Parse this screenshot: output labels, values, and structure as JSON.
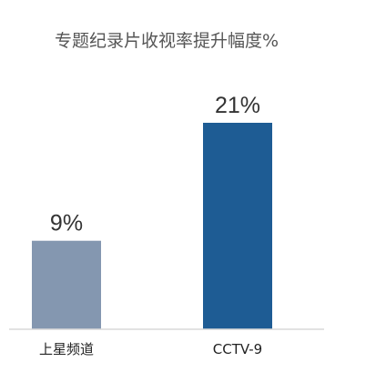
{
  "chart_data": {
    "type": "bar",
    "title": "专题纪录片收视率提升幅度%",
    "categories": [
      "上星频道",
      "CCTV-9"
    ],
    "values": [
      9,
      21
    ],
    "value_labels": [
      "9%",
      "21%"
    ],
    "bar_colors": [
      "#8497b0",
      "#1e5c94"
    ],
    "axis_color": "#d9d9d9",
    "ylim": [
      0,
      21
    ],
    "grid": false,
    "legend": "none"
  }
}
